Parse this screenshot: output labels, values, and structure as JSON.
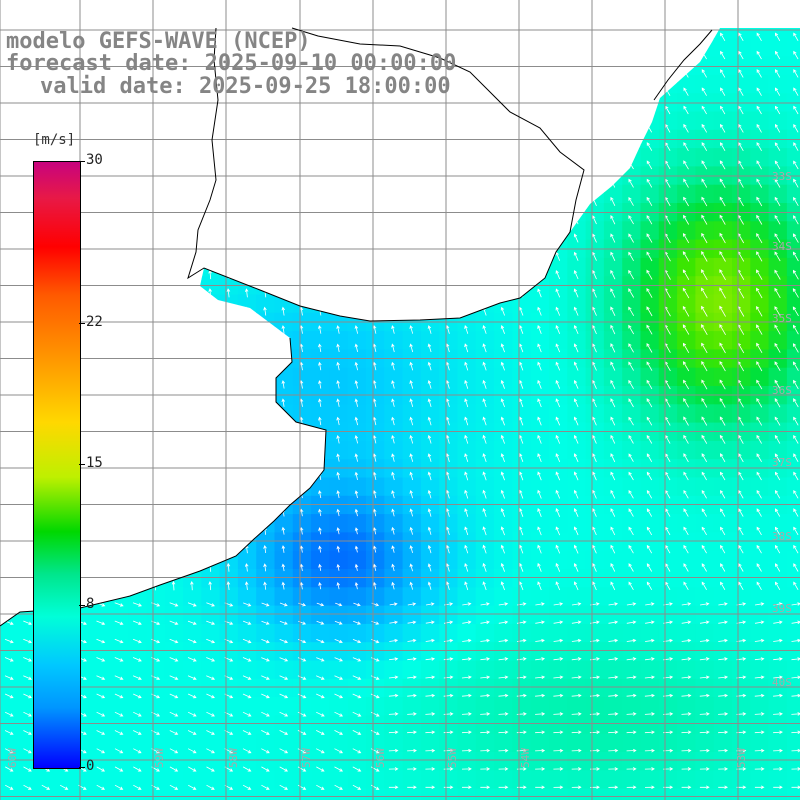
{
  "header": {
    "model": "modelo GEFS-WAVE (NCEP)",
    "forecast": "forecast date: 2025-09-10 00:00:00",
    "valid": "valid date: 2025-09-25 18:00:00"
  },
  "colorbar": {
    "units": "[m/s]",
    "min": 0,
    "max": 30,
    "ticks": [
      {
        "value": 30,
        "label": "30"
      },
      {
        "value": 22,
        "label": "22"
      },
      {
        "value": 15,
        "label": "15"
      },
      {
        "value": 8,
        "label": "8"
      },
      {
        "value": 0,
        "label": "0"
      }
    ]
  },
  "lat_labels": [
    "33S",
    "34S",
    "35S",
    "36S",
    "37S",
    "38S",
    "39S",
    "40S"
  ],
  "lon_labels": [
    "60W",
    "59W",
    "58W",
    "57W",
    "56W",
    "55W",
    "54W",
    "53W"
  ],
  "colors": {
    "coast": "#000000",
    "grid": "#8c8c8c",
    "arrow": "#ffffff",
    "land": "#ffffff"
  }
}
